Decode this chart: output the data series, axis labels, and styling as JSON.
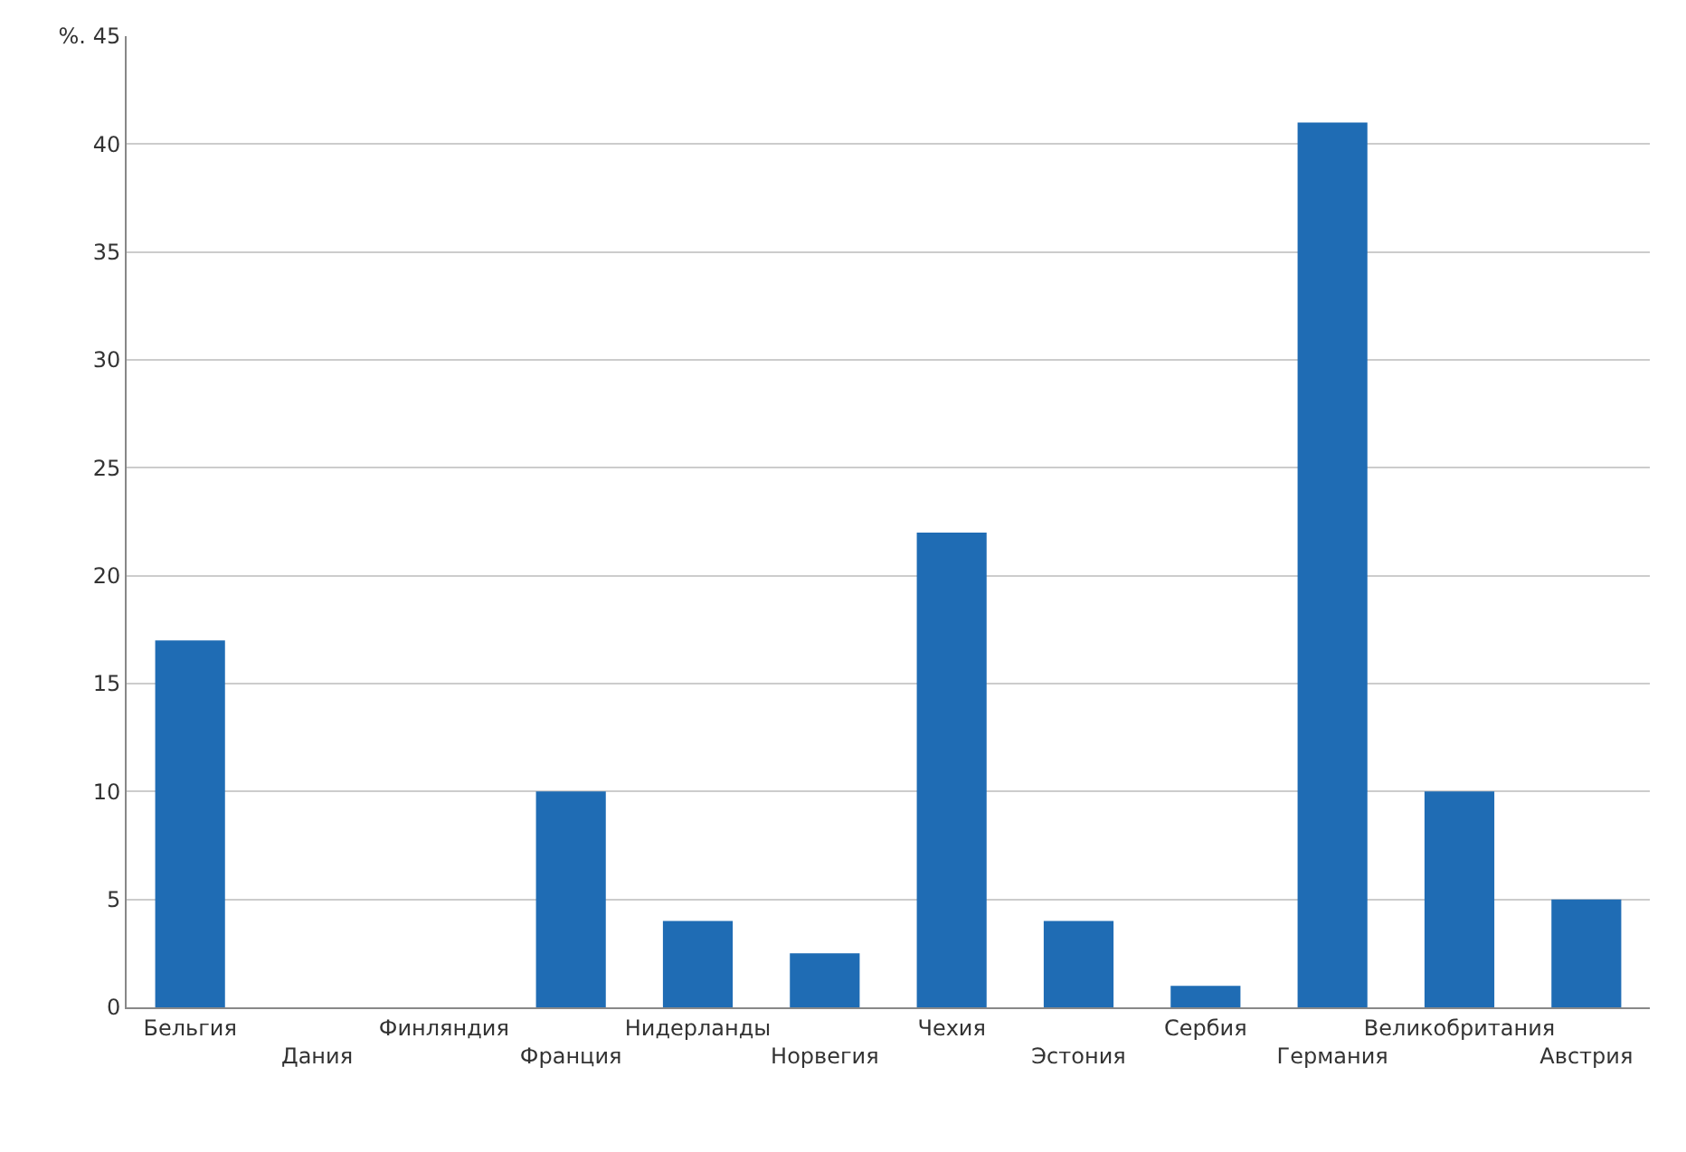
{
  "chart_data": {
    "type": "bar",
    "categories": [
      "Бельгия",
      "Дания",
      "Финляндия",
      "Франция",
      "Нидерланды",
      "Норвегия",
      "Чехия",
      "Эстония",
      "Сербия",
      "Германия",
      "Великобритания",
      "Австрия"
    ],
    "values": [
      17,
      0,
      0,
      10,
      4,
      2.5,
      22,
      4,
      1,
      41,
      10,
      5
    ],
    "color": "#1f6cb4",
    "ylim": [
      0,
      45
    ],
    "yticks": [
      0,
      5,
      10,
      15,
      20,
      25,
      30,
      35,
      40,
      {
        "value": 45,
        "label": "%. 45"
      }
    ],
    "grid": "y"
  }
}
